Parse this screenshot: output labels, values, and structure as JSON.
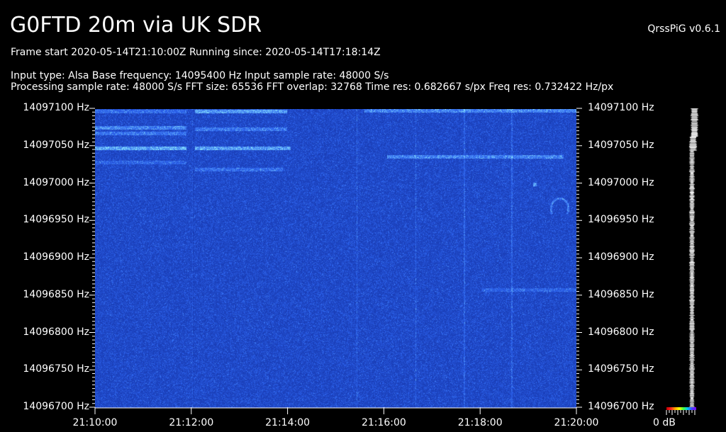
{
  "header": {
    "title": "G0FTD 20m via UK SDR",
    "version": "QrssPiG v0.6.1",
    "frame_line": "Frame start 2020-05-14T21:10:00Z Running since: 2020-05-14T17:18:14Z",
    "info_line_1": "Input type: Alsa Base frequency: 14095400 Hz Input sample rate: 48000 S/s",
    "info_line_2": "Processing sample rate: 48000 S/s FFT size: 65536 FFT overlap: 32768 Time res: 0.682667 s/px Freq res: 0.732422 Hz/px"
  },
  "spectrogram": {
    "frequency_labels": [
      "14097100 Hz",
      "14097050 Hz",
      "14097000 Hz",
      "14096950 Hz",
      "14096900 Hz",
      "14096850 Hz",
      "14096800 Hz",
      "14096750 Hz",
      "14096700 Hz"
    ],
    "time_labels": [
      "21:10:00",
      "21:12:00",
      "21:14:00",
      "21:16:00",
      "21:18:00",
      "21:20:00"
    ],
    "colors": {
      "background": "#1e46d8",
      "signal": "#8ff0ff",
      "noise_dark": "#0a1f9a"
    }
  },
  "level_scale": {
    "label": "0 dB"
  }
}
